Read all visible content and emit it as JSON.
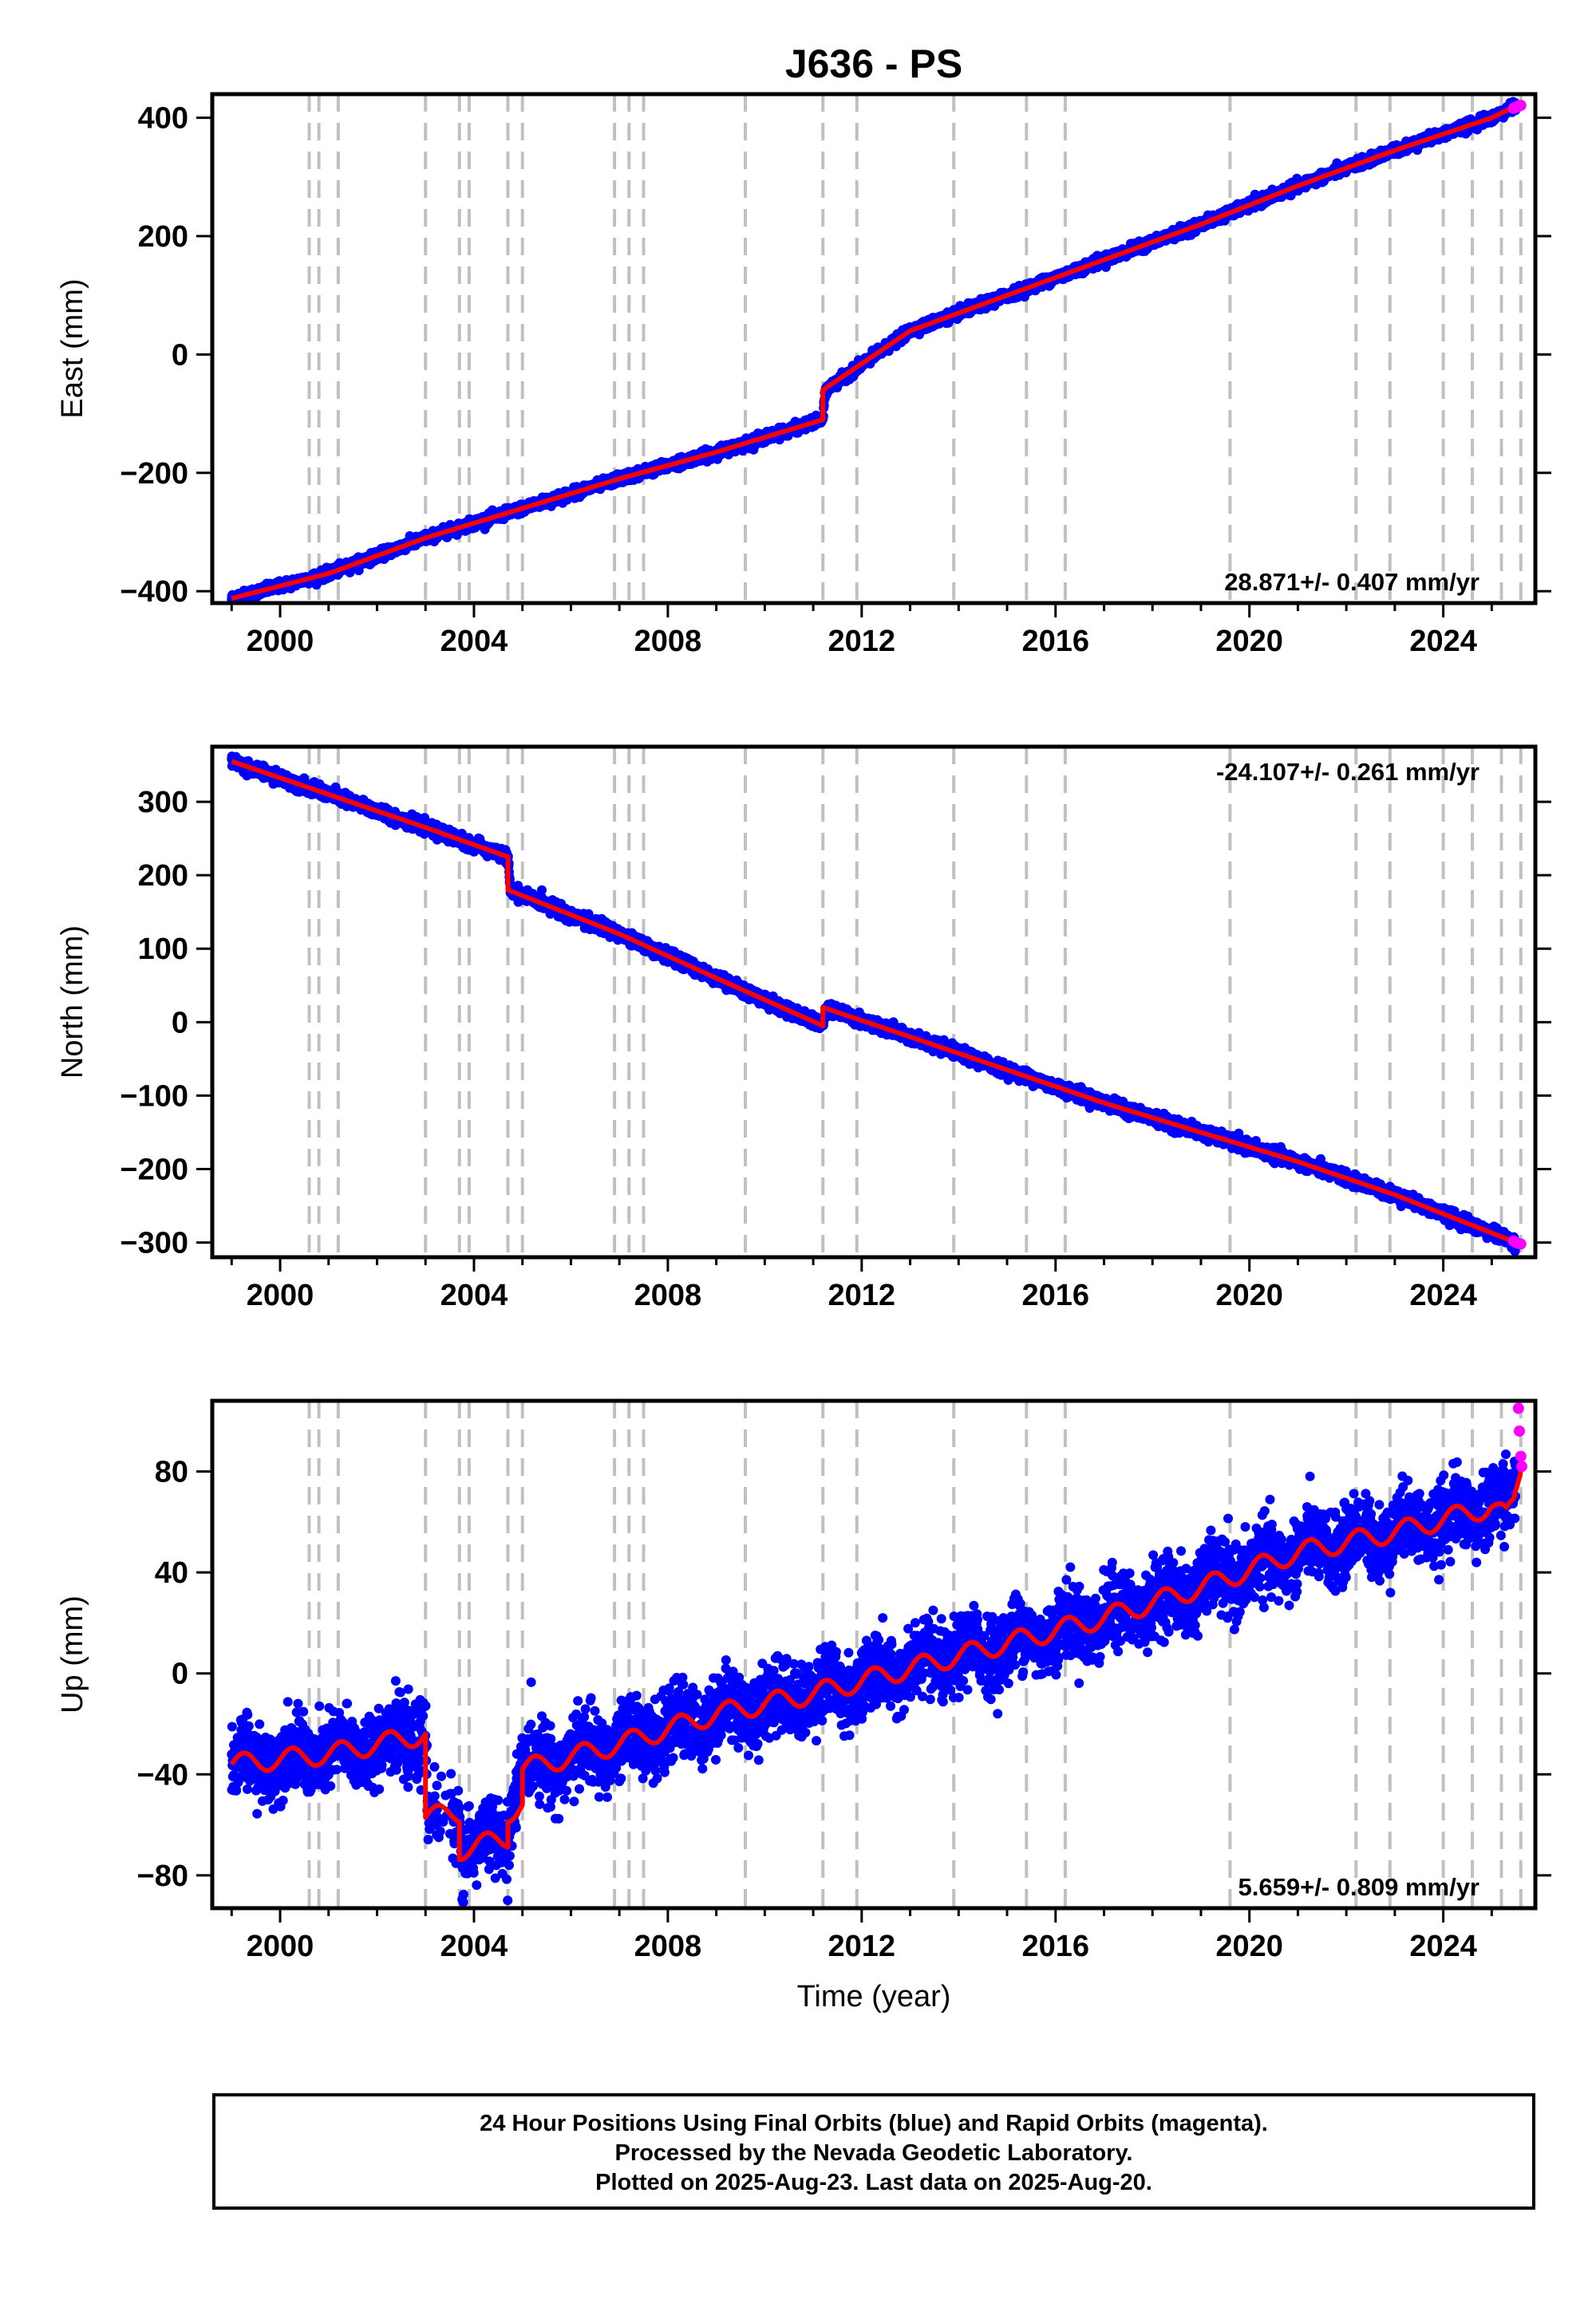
{
  "title": "J636 - PS",
  "xlabel": "Time (year)",
  "footer": {
    "line1": "24 Hour Positions Using Final Orbits (blue) and Rapid Orbits (magenta).",
    "line2": "Processed by the Nevada Geodetic Laboratory.",
    "line3": "Plotted on 2025-Aug-23. Last data on 2025-Aug-20."
  },
  "colors": {
    "final_orbits": "#0000ff",
    "rapid_orbits": "#ff00ff",
    "model": "#ff0000",
    "event_lines": "#c0c0c0"
  },
  "chart_data": [
    {
      "type": "scatter",
      "component": "East",
      "ylabel": "East (mm)",
      "xlim": [
        1998.6,
        2025.9
      ],
      "ylim": [
        -420,
        440
      ],
      "xticks": [
        2000,
        2004,
        2008,
        2012,
        2016,
        2020,
        2024
      ],
      "yticks": [
        -400,
        -200,
        0,
        200,
        400
      ],
      "ytick_labels": [
        "−400",
        "−200",
        "0",
        "200",
        "400"
      ],
      "rate_label": "28.871+/- 0.407 mm/yr",
      "rate_position": "bottom-right",
      "series": [
        {
          "name": "Final Orbits",
          "x": [
            1999.0,
            2001.0,
            2003.0,
            2005.0,
            2007.0,
            2009.0,
            2011.2,
            2011.25,
            2013.0,
            2015.0,
            2017.0,
            2019.0,
            2021.0,
            2023.0,
            2025.0,
            2025.5
          ],
          "y": [
            -412,
            -370,
            -310,
            -260,
            -210,
            -165,
            -110,
            -60,
            40,
            100,
            160,
            220,
            285,
            345,
            400,
            420
          ],
          "scatter_sd": 4
        },
        {
          "name": "Rapid Orbits",
          "x": [
            2025.45,
            2025.5,
            2025.55,
            2025.6
          ],
          "y": [
            416,
            418,
            420,
            421
          ]
        }
      ],
      "model": {
        "x": [
          1999.0,
          2001.0,
          2003.0,
          2005.0,
          2007.0,
          2009.0,
          2011.2,
          2011.2,
          2013.0,
          2015.0,
          2017.0,
          2019.0,
          2021.0,
          2023.0,
          2025.0,
          2025.5
        ],
        "y": [
          -412,
          -370,
          -310,
          -260,
          -210,
          -165,
          -110,
          -60,
          40,
          100,
          160,
          220,
          285,
          345,
          400,
          420
        ]
      }
    },
    {
      "type": "scatter",
      "component": "North",
      "ylabel": "North (mm)",
      "xlim": [
        1998.6,
        2025.9
      ],
      "ylim": [
        -320,
        375
      ],
      "xticks": [
        2000,
        2004,
        2008,
        2012,
        2016,
        2020,
        2024
      ],
      "yticks": [
        -300,
        -200,
        -100,
        0,
        100,
        200,
        300
      ],
      "ytick_labels": [
        "−300",
        "−200",
        "−100",
        "0",
        "100",
        "200",
        "300"
      ],
      "rate_label": "-24.107+/- 0.261 mm/yr",
      "rate_position": "top-right",
      "series": [
        {
          "name": "Final Orbits",
          "x": [
            1999.0,
            2001.0,
            2003.0,
            2004.7,
            2004.75,
            2007.0,
            2009.0,
            2011.2,
            2011.25,
            2013.0,
            2015.0,
            2017.0,
            2019.0,
            2021.0,
            2023.0,
            2025.5
          ],
          "y": [
            355,
            310,
            265,
            225,
            180,
            120,
            60,
            -5,
            20,
            -20,
            -65,
            -110,
            -150,
            -190,
            -235,
            -300
          ],
          "scatter_sd": 4
        },
        {
          "name": "Rapid Orbits",
          "x": [
            2025.45,
            2025.5,
            2025.55,
            2025.6
          ],
          "y": [
            -298,
            -300,
            -301,
            -302
          ]
        }
      ],
      "model": {
        "x": [
          1999.0,
          2001.0,
          2003.0,
          2004.7,
          2004.7,
          2007.0,
          2009.0,
          2011.2,
          2011.2,
          2013.0,
          2015.0,
          2017.0,
          2019.0,
          2021.0,
          2023.0,
          2025.5
        ],
        "y": [
          355,
          310,
          265,
          225,
          180,
          120,
          60,
          -5,
          20,
          -20,
          -65,
          -110,
          -150,
          -190,
          -235,
          -300
        ]
      }
    },
    {
      "type": "scatter",
      "component": "Up",
      "ylabel": "Up (mm)",
      "xlim": [
        1998.6,
        2025.9
      ],
      "ylim": [
        -93,
        108
      ],
      "xticks": [
        2000,
        2004,
        2008,
        2012,
        2016,
        2020,
        2024
      ],
      "yticks": [
        -80,
        -40,
        0,
        40,
        80
      ],
      "ytick_labels": [
        "−80",
        "−40",
        "0",
        "40",
        "80"
      ],
      "rate_label": "5.659+/- 0.809 mm/yr",
      "rate_position": "bottom-right",
      "seasonal_amplitude_mm": 4,
      "series": [
        {
          "name": "Final Orbits",
          "x": [
            1999.0,
            2001.0,
            2003.0,
            2003.05,
            2003.7,
            2003.75,
            2004.7,
            2004.75,
            2005.0,
            2007.0,
            2009.0,
            2011.0,
            2013.0,
            2015.0,
            2017.0,
            2019.0,
            2021.0,
            2023.0,
            2025.0,
            2025.5
          ],
          "y": [
            -36,
            -32,
            -24,
            -57,
            -55,
            -70,
            -65,
            -55,
            -38,
            -28,
            -16,
            -8,
            2,
            12,
            22,
            34,
            48,
            56,
            66,
            70
          ],
          "scatter_sd": 7
        },
        {
          "name": "Rapid Orbits",
          "x": [
            2025.55,
            2025.57,
            2025.6,
            2025.62
          ],
          "y": [
            105,
            96,
            86,
            82
          ]
        }
      ],
      "model": {
        "x": [
          1999.0,
          2001.0,
          2003.0,
          2003.0,
          2003.7,
          2003.7,
          2004.7,
          2004.7,
          2005.0,
          2005.0,
          2007.0,
          2009.0,
          2011.0,
          2013.0,
          2015.0,
          2017.0,
          2019.0,
          2021.0,
          2023.0,
          2025.0,
          2025.3,
          2025.45,
          2025.6
        ],
        "y": [
          -36,
          -32,
          -24,
          -57,
          -55,
          -70,
          -65,
          -55,
          -52,
          -38,
          -28,
          -16,
          -8,
          2,
          12,
          22,
          34,
          48,
          56,
          66,
          62,
          68,
          82
        ]
      }
    }
  ],
  "event_years": [
    2000.6,
    2000.8,
    2001.2,
    2003.0,
    2003.7,
    2003.9,
    2004.7,
    2005.0,
    2006.9,
    2007.2,
    2007.5,
    2009.6,
    2011.2,
    2011.9,
    2013.9,
    2015.4,
    2016.2,
    2019.6,
    2022.2,
    2022.9,
    2024.0,
    2024.6,
    2025.2,
    2025.6
  ]
}
